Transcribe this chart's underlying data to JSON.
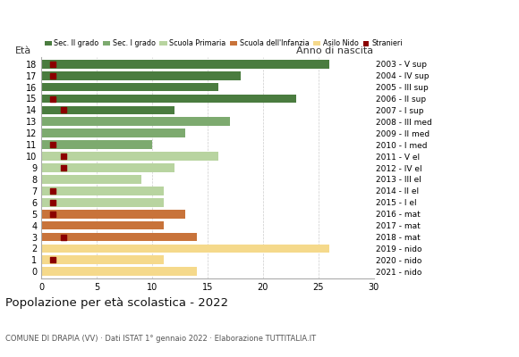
{
  "ages": [
    18,
    17,
    16,
    15,
    14,
    13,
    12,
    11,
    10,
    9,
    8,
    7,
    6,
    5,
    4,
    3,
    2,
    1,
    0
  ],
  "values": [
    26,
    18,
    16,
    23,
    12,
    17,
    13,
    10,
    16,
    12,
    9,
    11,
    11,
    13,
    11,
    14,
    26,
    11,
    14
  ],
  "stranieri": [
    1,
    1,
    0,
    1,
    2,
    0,
    0,
    1,
    2,
    2,
    0,
    1,
    1,
    1,
    0,
    2,
    0,
    1,
    0
  ],
  "bar_colors": [
    "#4a7c3f",
    "#4a7c3f",
    "#4a7c3f",
    "#4a7c3f",
    "#4a7c3f",
    "#7daa6f",
    "#7daa6f",
    "#7daa6f",
    "#b8d4a0",
    "#b8d4a0",
    "#b8d4a0",
    "#b8d4a0",
    "#b8d4a0",
    "#c8733a",
    "#c8733a",
    "#c8733a",
    "#f5d98b",
    "#f5d98b",
    "#f5d98b"
  ],
  "right_labels": [
    "2003 - V sup",
    "2004 - IV sup",
    "2005 - III sup",
    "2006 - II sup",
    "2007 - I sup",
    "2008 - III med",
    "2009 - II med",
    "2010 - I med",
    "2011 - V el",
    "2012 - IV el",
    "2013 - III el",
    "2014 - II el",
    "2015 - I el",
    "2016 - mat",
    "2017 - mat",
    "2018 - mat",
    "2019 - nido",
    "2020 - nido",
    "2021 - nido"
  ],
  "legend_labels": [
    "Sec. II grado",
    "Sec. I grado",
    "Scuola Primaria",
    "Scuola dell'Infanzia",
    "Asilo Nido",
    "Stranieri"
  ],
  "legend_colors": [
    "#4a7c3f",
    "#7daa6f",
    "#b8d4a0",
    "#c8733a",
    "#f5d98b",
    "#8b0000"
  ],
  "title": "Popolazione per età scolastica - 2022",
  "subtitle": "COMUNE DI DRAPIA (VV) · Dati ISTAT 1° gennaio 2022 · Elaborazione TUTTITALIA.IT",
  "ylabel_left": "Età",
  "ylabel_right": "Anno di nascita",
  "xlim": [
    0,
    30
  ],
  "xticks": [
    0,
    5,
    10,
    15,
    20,
    25,
    30
  ],
  "stranieri_color": "#8b0000",
  "stranieri_size": 25,
  "bar_height": 0.75,
  "grid_color": "#cccccc"
}
